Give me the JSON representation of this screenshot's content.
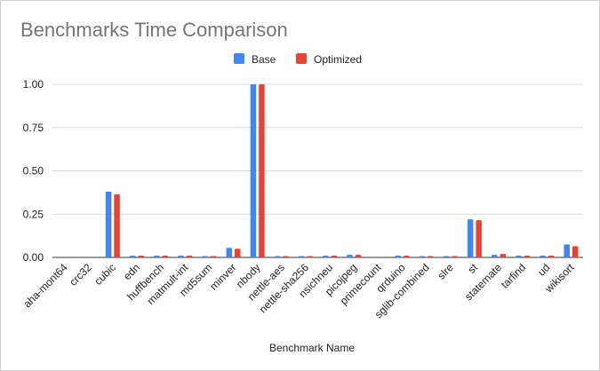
{
  "chart_data": {
    "type": "bar",
    "title": "Benchmarks Time Comparison",
    "xlabel": "Benchmark Name",
    "ylabel": "",
    "ylim": [
      0,
      1.0
    ],
    "yticks": [
      "0.00",
      "0.25",
      "0.50",
      "0.75",
      "1.00"
    ],
    "grid": true,
    "legend_position": "top",
    "categories": [
      "aha-mont64",
      "crc32",
      "cubic",
      "edn",
      "huffbench",
      "matmult-int",
      "md5sum",
      "minver",
      "nbody",
      "nettle-aes",
      "nettle-sha256",
      "nsichneu",
      "picojpeg",
      "primecount",
      "qrduino",
      "sglib-combined",
      "slre",
      "st",
      "statemate",
      "tarfind",
      "ud",
      "wikisort"
    ],
    "series": [
      {
        "name": "Base",
        "color": "#4285f4",
        "values": [
          0.0,
          0.0,
          0.38,
          0.01,
          0.01,
          0.01,
          0.005,
          0.055,
          1.0,
          0.005,
          0.005,
          0.01,
          0.015,
          0.0,
          0.01,
          0.005,
          0.005,
          0.22,
          0.015,
          0.01,
          0.01,
          0.075
        ]
      },
      {
        "name": "Optimized",
        "color": "#ea4335",
        "values": [
          0.0,
          0.0,
          0.365,
          0.01,
          0.01,
          0.01,
          0.005,
          0.05,
          1.0,
          0.005,
          0.005,
          0.01,
          0.015,
          0.0,
          0.01,
          0.005,
          0.005,
          0.215,
          0.02,
          0.01,
          0.01,
          0.065
        ]
      }
    ]
  }
}
